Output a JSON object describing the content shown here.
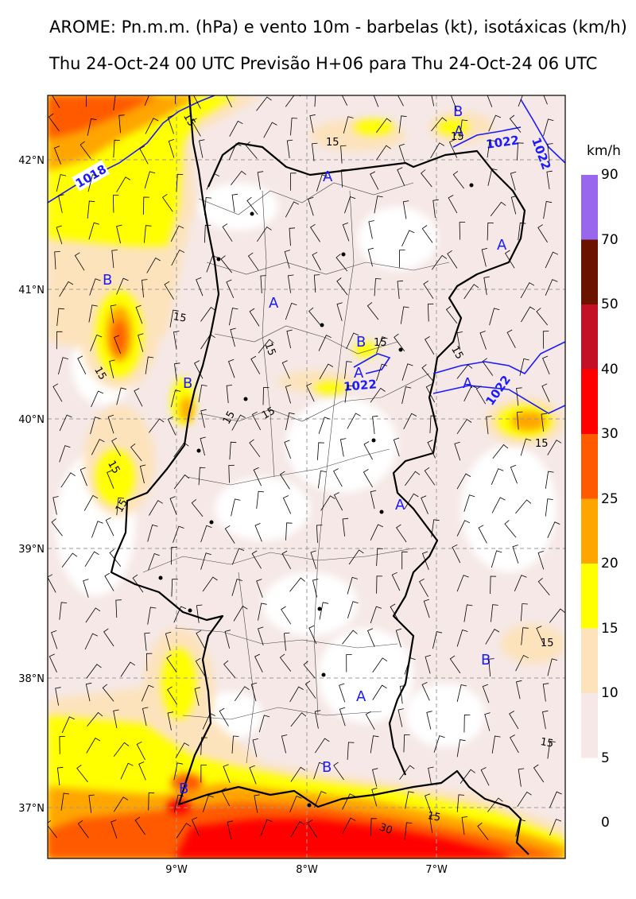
{
  "title_line1": "AROME: Pn.m.m. (hPa) e vento 10m - barbelas (kt), isotáxicas (km/h)",
  "title_line2": "Thu 24-Oct-24 00 UTC Previsão H+06 para Thu 24-Oct-24 06 UTC",
  "colorbar": {
    "unit": "km/h",
    "levels": [
      "0",
      "5",
      "10",
      "15",
      "20",
      "25",
      "30",
      "40",
      "50",
      "70",
      "90"
    ],
    "colors": [
      "#ffffff",
      "#f5e8e6",
      "#fde3bc",
      "#ffff00",
      "#ffa500",
      "#ff5a00",
      "#ff0000",
      "#c41026",
      "#6b1200",
      "#9966ee"
    ]
  },
  "axes": {
    "lon_ticks": [
      {
        "label": "9°W",
        "value": -9
      },
      {
        "label": "8°W",
        "value": -8
      },
      {
        "label": "7°W",
        "value": -7
      }
    ],
    "lat_ticks": [
      {
        "label": "42°N",
        "value": 42
      },
      {
        "label": "41°N",
        "value": 41
      },
      {
        "label": "40°N",
        "value": 40
      },
      {
        "label": "39°N",
        "value": 39
      },
      {
        "label": "38°N",
        "value": 38
      },
      {
        "label": "37°N",
        "value": 37
      }
    ],
    "lon_range": [
      -10.0,
      -6.0
    ],
    "lat_range": [
      36.6,
      42.5
    ]
  },
  "isobars": [
    {
      "label": "1018"
    },
    {
      "label": "1022"
    },
    {
      "label": "1022"
    },
    {
      "label": "1022"
    },
    {
      "label": "1022"
    }
  ],
  "isotach_labels": [
    "15",
    "15",
    "15",
    "15",
    "15",
    "15",
    "15",
    "15",
    "15",
    "15",
    "15",
    "15",
    "15",
    "15",
    "30"
  ],
  "pressure_centres": [
    "B",
    "A",
    "A",
    "B",
    "A",
    "A",
    "B",
    "A",
    "B",
    "A",
    "A",
    "B",
    "A",
    "B",
    "B",
    "A",
    "B"
  ],
  "colors": {
    "isobar": "#0000ff",
    "coast": "#000000",
    "centre_text": "#1a1aff"
  }
}
